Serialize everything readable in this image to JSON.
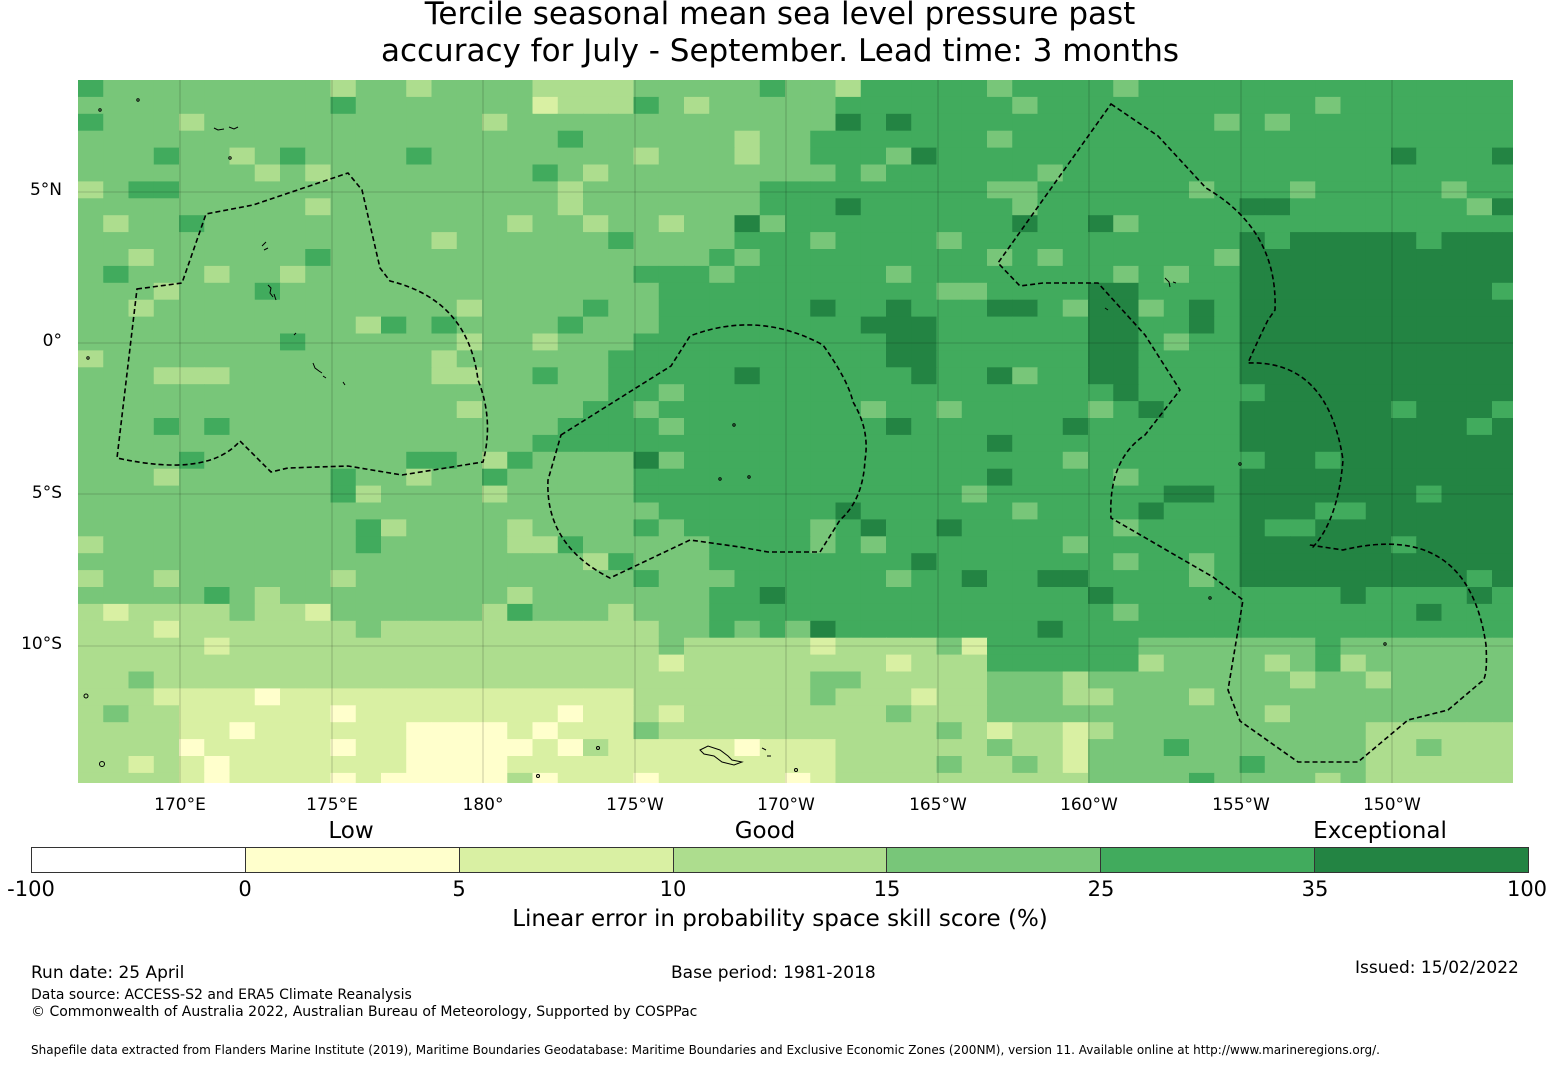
{
  "title": {
    "line1": "Tercile seasonal mean sea level pressure past",
    "line2": "accuracy for July - September. Lead time: 3 months"
  },
  "map": {
    "lat_ticks": [
      "5°N",
      "0°",
      "5°S",
      "10°S"
    ],
    "lon_ticks": [
      "170°E",
      "175°E",
      "180°",
      "175°W",
      "170°W",
      "165°W",
      "160°W",
      "155°W",
      "150°W"
    ],
    "eez_outline_style": "dashed black",
    "coastline_color": "#000000"
  },
  "legend": {
    "categories": [
      "Low",
      "Good",
      "Exceptional"
    ],
    "tick_labels": [
      "-100",
      "0",
      "5",
      "10",
      "15",
      "25",
      "35",
      "100"
    ],
    "colors": [
      "#ffffff",
      "#ffffcc",
      "#d9f0a3",
      "#addd8e",
      "#78c679",
      "#41ab5d",
      "#238443"
    ],
    "title": "Linear error in probability space skill score (%)"
  },
  "footer": {
    "run_date": "Run date: 25 April",
    "base_period": "Base period: 1981-2018",
    "issued": "Issued: 15/02/2022",
    "data_source": "Data source: ACCESS-S2 and ERA5 Climate Reanalysis",
    "copyright": "© Commonwealth of Australia 2022, Australian Bureau of Meteorology, Supported by COSPPac",
    "shapefile": "Shapefile data extracted from Flanders Marine Institute (2019), Maritime Boundaries Geodatabase: Maritime Boundaries and Exclusive Economic Zones (200NM), version 11. Available online at http://www.marineregions.org/."
  }
}
